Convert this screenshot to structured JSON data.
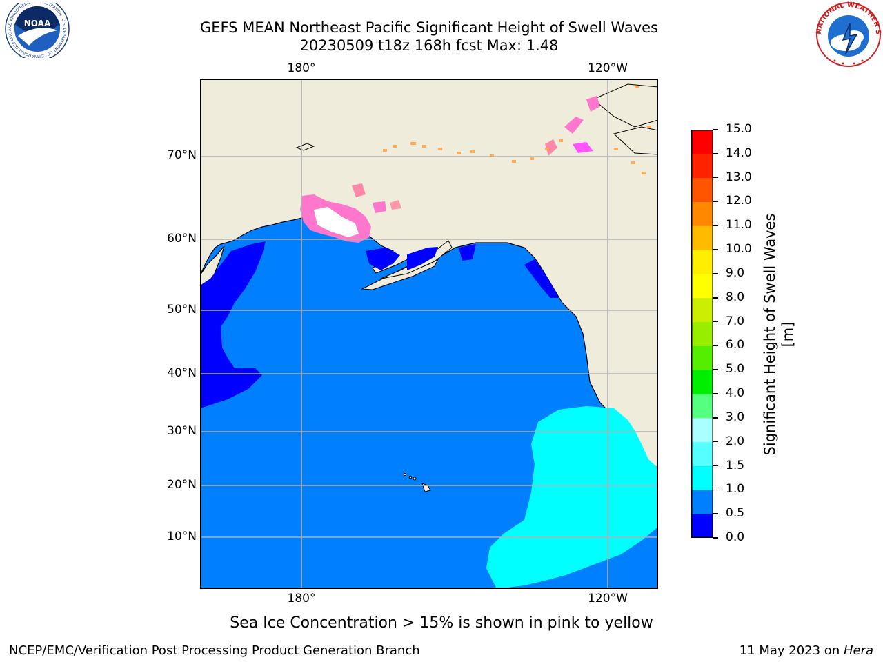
{
  "title_line1": "GEFS MEAN Northeast Pacific Significant Height of Swell Waves",
  "title_line2": "20230509 t18z 168h fcst   Max: 1.48",
  "logos": {
    "left": {
      "name": "noaa-logo",
      "text": "NOAA",
      "ring_text": "NATIONAL OCEANIC AND ATMOSPHERIC ADMINISTRATION · U.S. DEPARTMENT OF COMMERCE"
    },
    "right": {
      "name": "nws-logo",
      "ring_text": "NATIONAL WEATHER SERVICE"
    }
  },
  "map": {
    "lon_labels": [
      "180°",
      "120°W"
    ],
    "lat_labels": [
      "70°N",
      "60°N",
      "50°N",
      "40°N",
      "30°N",
      "20°N",
      "10°N"
    ],
    "colors": {
      "land": "#efecdb",
      "ocean_0_5_1_0": "#007fff",
      "ocean_0_0_0_5": "#0000ff",
      "ocean_1_0_1_5": "#00ffff",
      "sea_ice_pink": "#ff77cc",
      "sea_ice_orange": "#ffaa55",
      "grid": "#b0b0b0"
    }
  },
  "colorbar": {
    "title": "Significant Height of Swell Waves [m]",
    "tick_labels": [
      "0.0",
      "0.5",
      "1.0",
      "1.5",
      "2.0",
      "3.0",
      "4.0",
      "5.0",
      "6.0",
      "7.0",
      "8.0",
      "9.0",
      "10.0",
      "11.0",
      "12.0",
      "13.0",
      "14.0",
      "15.0"
    ],
    "segment_colors": [
      "#0000ff",
      "#007fff",
      "#00ffff",
      "#55ffff",
      "#aaffff",
      "#55ff7f",
      "#00ee00",
      "#55ee00",
      "#99ee00",
      "#ccee00",
      "#ffff00",
      "#ffee00",
      "#ffbb00",
      "#ff8800",
      "#ff5500",
      "#ff2200",
      "#ff0000"
    ]
  },
  "footnote": "Sea Ice Concentration > 15% is shown in pink to yellow",
  "credit": "NCEP/EMC/Verification Post Processing Product Generation Branch",
  "date": {
    "prefix": "11 May 2023 on ",
    "machine": "Hera"
  }
}
